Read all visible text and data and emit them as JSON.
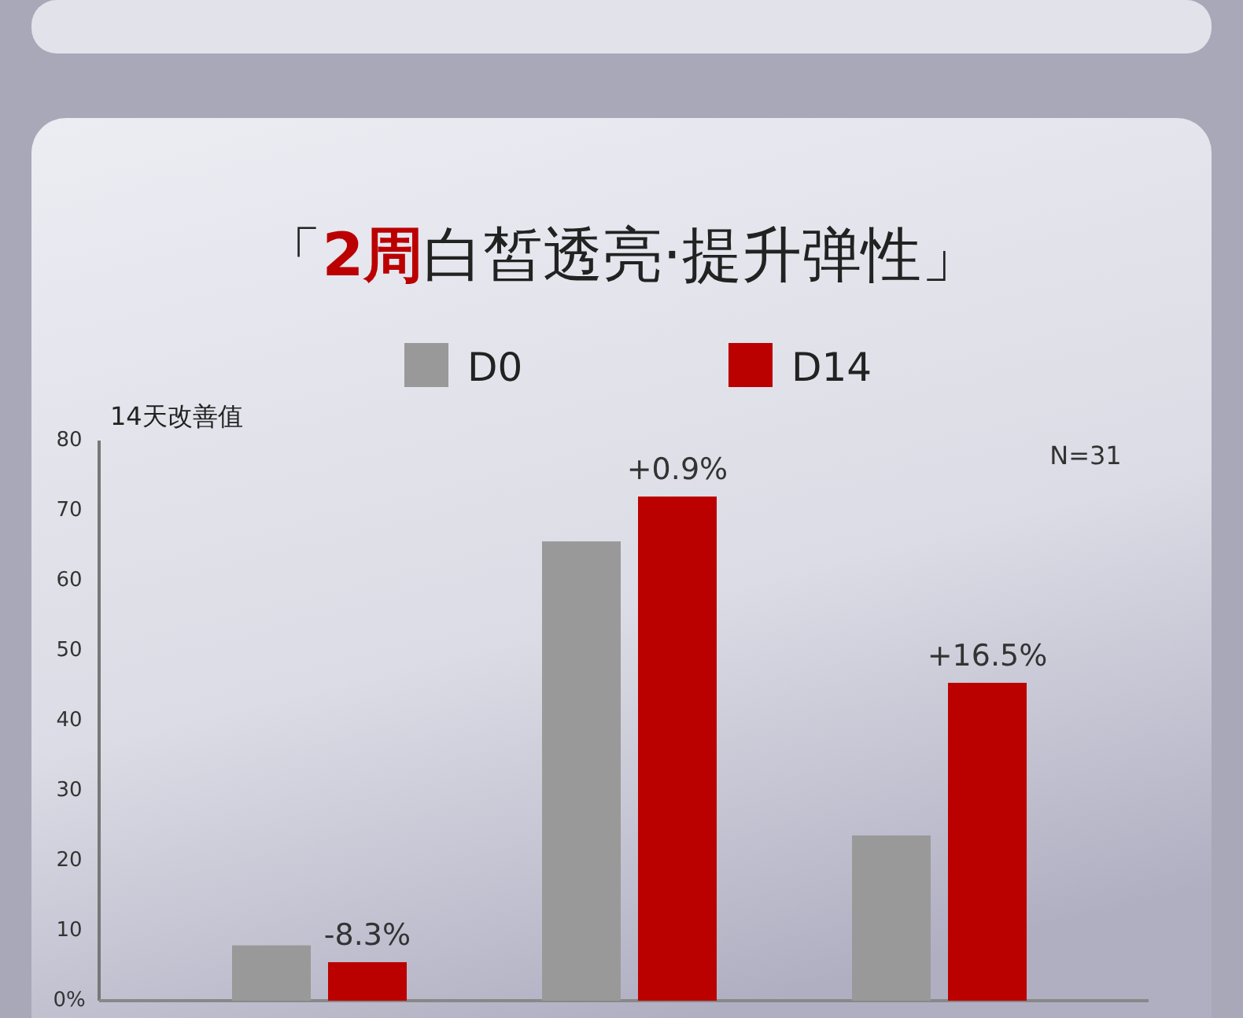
{
  "chart_data": {
    "type": "bar",
    "title": "「**2周**白皙透亮·提升弹性」",
    "ylabel": "14天改善值",
    "categories": [
      null,
      null,
      null
    ],
    "series": [
      {
        "name": "D0",
        "color": "#999999",
        "values": [
          7.9,
          65.6,
          23.6
        ]
      },
      {
        "name": "D14",
        "color": "#bb0000",
        "values": [
          5.5,
          72.0,
          45.4
        ]
      }
    ],
    "ylim": [
      0,
      80
    ],
    "yticks": [
      {
        "value": 0,
        "label": "0%"
      },
      10,
      20,
      30,
      40,
      50,
      60,
      70,
      80
    ],
    "legend": "top",
    "grid": false,
    "annotations": [
      "-8.3%",
      "+0.9%",
      "+16.5%",
      "N=31"
    ]
  }
}
